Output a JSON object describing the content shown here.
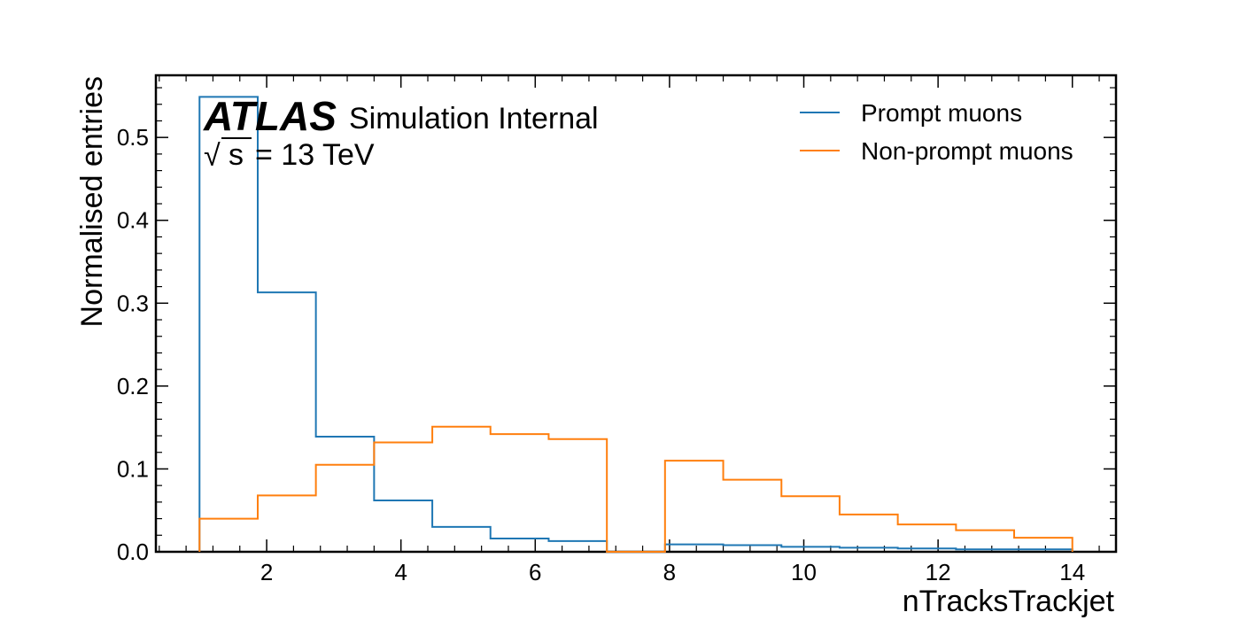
{
  "chart_data": {
    "type": "step-histogram",
    "xlabel": "nTracksTrackjet",
    "ylabel": "Normalised entries",
    "xlim": [
      0.35,
      14.65
    ],
    "ylim": [
      0,
      0.575
    ],
    "xticks": [
      2,
      4,
      6,
      8,
      10,
      12,
      14
    ],
    "yticks": [
      0.0,
      0.1,
      0.2,
      0.3,
      0.4,
      0.5
    ],
    "ytick_labels": [
      "0.0",
      "0.1",
      "0.2",
      "0.3",
      "0.4",
      "0.5"
    ],
    "bin_edges": [
      1.0,
      1.867,
      2.733,
      3.6,
      4.467,
      5.333,
      6.2,
      7.067,
      7.933,
      8.8,
      9.667,
      10.533,
      11.4,
      12.267,
      13.133,
      14.0
    ],
    "series": [
      {
        "name": "Prompt muons",
        "color": "#1f77b4",
        "values": [
          0.549,
          0.313,
          0.139,
          0.062,
          0.03,
          0.016,
          0.013,
          0.0,
          0.009,
          0.008,
          0.006,
          0.005,
          0.004,
          0.003,
          0.003
        ]
      },
      {
        "name": "Non-prompt muons",
        "color": "#ff7f0e",
        "values": [
          0.04,
          0.068,
          0.105,
          0.132,
          0.151,
          0.142,
          0.136,
          0.0,
          0.11,
          0.087,
          0.067,
          0.045,
          0.033,
          0.026,
          0.017
        ]
      }
    ],
    "legend_position": "top-right",
    "annotation": {
      "experiment": "ATLAS",
      "status": "Simulation Internal",
      "sqrt_symbol": "√",
      "energy_var": "s",
      "energy_value": "= 13 TeV"
    }
  }
}
